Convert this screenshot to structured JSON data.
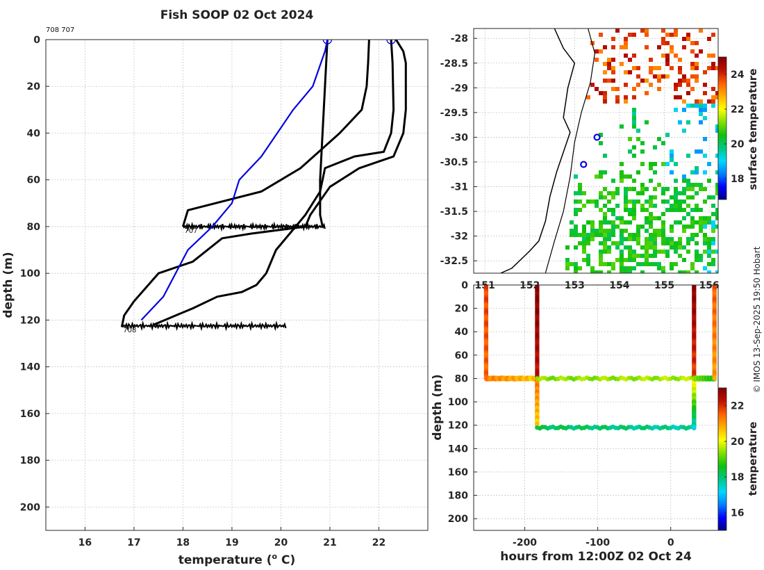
{
  "figure": {
    "title": "Fish SOOP 02 Oct 2024",
    "credit": "© IMOS 13-Sep-2025 19:50 Hobart"
  },
  "colors": {
    "profile_current": "#0000e0",
    "profile_previous": "#000000",
    "grid": "#c8c8c8",
    "marker": "#0000e0",
    "coast": "#000000"
  },
  "colormap": [
    "#000080",
    "#0000ff",
    "#0080ff",
    "#00d8ff",
    "#00c880",
    "#10c010",
    "#80e000",
    "#ffff00",
    "#ffb000",
    "#ff6000",
    "#c01000",
    "#800000"
  ],
  "chart_data": [
    {
      "id": "profiles",
      "type": "line",
      "corner_label": "708 707",
      "xlabel": "temperature (",
      "xlabel_unit": "o",
      "xlabel_suffix": " C)",
      "ylabel": "depth (m)",
      "xlim": [
        15.2,
        23.0
      ],
      "ylim": [
        210,
        0
      ],
      "xticks": [
        16,
        17,
        18,
        19,
        20,
        21,
        22
      ],
      "yticks": [
        0,
        20,
        40,
        60,
        80,
        100,
        120,
        140,
        160,
        180,
        200
      ],
      "grid": true,
      "series": [
        {
          "name": "current",
          "color": "blue",
          "points": [
            [
              20.95,
              0
            ],
            [
              20.9,
              5
            ],
            [
              20.65,
              20
            ],
            [
              20.25,
              30
            ],
            [
              19.6,
              50
            ],
            [
              19.15,
              60
            ],
            [
              19.0,
              70
            ],
            [
              18.6,
              80
            ],
            [
              18.1,
              90
            ],
            [
              17.6,
              110
            ],
            [
              17.15,
              120
            ]
          ]
        },
        {
          "name": "previous-a",
          "color": "black",
          "points": [
            [
              20.95,
              0
            ],
            [
              20.9,
              20
            ],
            [
              20.85,
              40
            ],
            [
              20.8,
              60
            ],
            [
              20.8,
              75
            ],
            [
              20.85,
              80
            ]
          ]
        },
        {
          "name": "previous-b",
          "color": "black",
          "points": [
            [
              21.8,
              0
            ],
            [
              21.78,
              10
            ],
            [
              21.75,
              20
            ],
            [
              21.65,
              30
            ],
            [
              21.2,
              40
            ],
            [
              20.4,
              55
            ],
            [
              19.6,
              65
            ],
            [
              18.1,
              73
            ],
            [
              18.0,
              80
            ]
          ]
        },
        {
          "name": "previous-c",
          "color": "black",
          "points": [
            [
              22.35,
              0
            ],
            [
              22.5,
              5
            ],
            [
              22.55,
              10
            ],
            [
              22.55,
              30
            ],
            [
              22.5,
              40
            ],
            [
              22.3,
              50
            ],
            [
              21.6,
              55
            ],
            [
              21.0,
              63
            ],
            [
              20.6,
              75
            ],
            [
              20.5,
              80
            ],
            [
              19.4,
              83
            ],
            [
              18.8,
              85
            ],
            [
              18.2,
              95
            ],
            [
              17.5,
              100
            ],
            [
              17.0,
              112
            ],
            [
              16.8,
              118
            ],
            [
              16.75,
              123
            ]
          ]
        },
        {
          "name": "previous-d",
          "color": "black",
          "points": [
            [
              22.25,
              0
            ],
            [
              22.28,
              10
            ],
            [
              22.3,
              30
            ],
            [
              22.25,
              40
            ],
            [
              22.1,
              48
            ],
            [
              21.5,
              50
            ],
            [
              20.9,
              55
            ],
            [
              20.8,
              65
            ],
            [
              20.5,
              75
            ],
            [
              20.3,
              80
            ],
            [
              19.9,
              90
            ],
            [
              19.7,
              100
            ],
            [
              19.5,
              105
            ],
            [
              19.2,
              108
            ],
            [
              18.7,
              110
            ],
            [
              18.2,
              115
            ],
            [
              17.4,
              122
            ]
          ]
        }
      ],
      "spikes": [
        {
          "depth": 80,
          "tmin": 18.0,
          "tmax": 20.9,
          "label": "707"
        },
        {
          "depth": 122.5,
          "tmin": 16.75,
          "tmax": 20.1,
          "label": "708"
        }
      ],
      "circle_markers": [
        [
          20.95,
          0
        ],
        [
          22.25,
          0
        ]
      ]
    },
    {
      "id": "map",
      "type": "heatmap",
      "colorbar_label": "surface temperature",
      "colorbar_ticks": [
        18,
        20,
        22,
        24
      ],
      "clim": [
        16.8,
        25
      ],
      "xlim": [
        150.75,
        156.2
      ],
      "ylim": [
        -32.75,
        -27.8
      ],
      "xticks": [
        151,
        152,
        153,
        154,
        155,
        156
      ],
      "xtick_labels": [
        "151",
        "152",
        "153",
        "154",
        "155",
        "156"
      ],
      "yticks": [
        -28,
        -28.5,
        -29,
        -29.5,
        -30,
        -30.5,
        -31,
        -31.5,
        -32,
        -32.5
      ],
      "ytick_labels": [
        "-28",
        "-28.5",
        "-29",
        "-29.5",
        "-30",
        "-30.5",
        "-31",
        "-31.5",
        "-32",
        "-32.5"
      ],
      "station_markers": [
        [
          153.5,
          -30.0
        ],
        [
          153.2,
          -30.55
        ]
      ]
    },
    {
      "id": "track",
      "type": "scatter",
      "xlabel": "hours from 12:00Z 02 Oct 24",
      "ylabel": "depth (m)",
      "colorbar_label": "temperature",
      "colorbar_ticks": [
        16,
        18,
        20,
        22
      ],
      "clim": [
        15,
        23
      ],
      "xlim": [
        -270,
        65
      ],
      "ylim": [
        210,
        0
      ],
      "xticks": [
        -200,
        -100,
        0
      ],
      "yticks": [
        0,
        20,
        40,
        60,
        80,
        100,
        120,
        140,
        160,
        180,
        200
      ],
      "segments": [
        {
          "x0": -253,
          "x1": -253,
          "d0": 0,
          "d1": 80,
          "t0": 21.8,
          "t1": 21.5
        },
        {
          "x0": -253,
          "x1": -183,
          "d0": 80,
          "d1": 80,
          "t0": 21.3,
          "t1": 20.6
        },
        {
          "x0": -183,
          "x1": -183,
          "d0": 0,
          "d1": 80,
          "t0": 23.0,
          "t1": 22.3
        },
        {
          "x0": -183,
          "x1": -183,
          "d0": 80,
          "d1": 122,
          "t0": 21.4,
          "t1": 20.5
        },
        {
          "x0": -183,
          "x1": 32,
          "d0": 80,
          "d1": 80,
          "t0": 19.4,
          "t1": 19.6
        },
        {
          "x0": -183,
          "x1": 32,
          "d0": 122,
          "d1": 122,
          "t0": 18.2,
          "t1": 17.7
        },
        {
          "x0": 32,
          "x1": 32,
          "d0": 0,
          "d1": 80,
          "t0": 23.0,
          "t1": 21.8
        },
        {
          "x0": 32,
          "x1": 32,
          "d0": 80,
          "d1": 122,
          "t0": 20.6,
          "t1": 17.5
        },
        {
          "x0": 32,
          "x1": 60,
          "d0": 80,
          "d1": 80,
          "t0": 19.4,
          "t1": 18.6
        },
        {
          "x0": 60,
          "x1": 60,
          "d0": 0,
          "d1": 80,
          "t0": 21.6,
          "t1": 21.0
        }
      ]
    }
  ]
}
